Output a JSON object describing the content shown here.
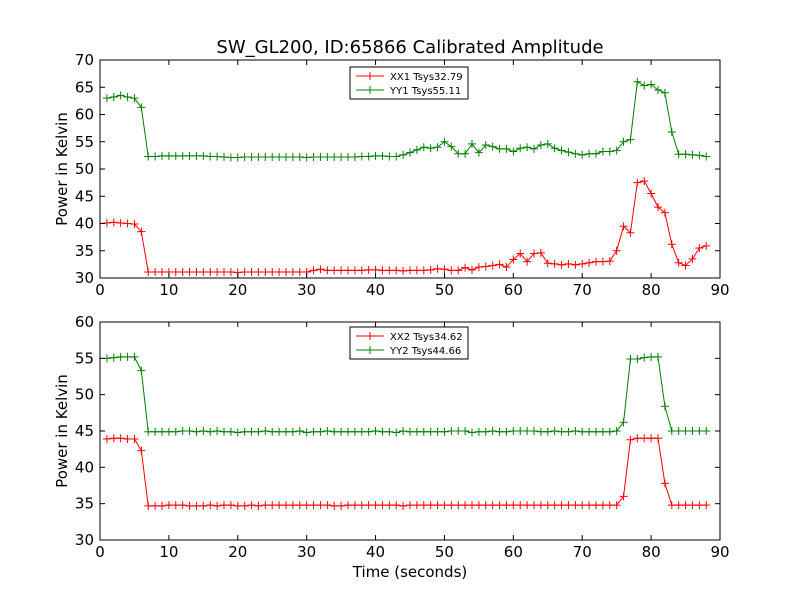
{
  "figure": {
    "title": "SW_GL200, ID:65866 Calibrated Amplitude"
  },
  "chart_data": [
    {
      "type": "line",
      "title": "SW_GL200, ID:65866 Calibrated Amplitude",
      "xlabel": "",
      "ylabel": "Power in Kelvin",
      "xlim": [
        0,
        90
      ],
      "ylim": [
        30,
        70
      ],
      "xticks": [
        0,
        10,
        20,
        30,
        40,
        50,
        60,
        70,
        80,
        90
      ],
      "yticks": [
        30,
        35,
        40,
        45,
        50,
        55,
        60,
        65,
        70
      ],
      "grid": false,
      "legend_position": "top-center",
      "marker": "plus",
      "x": [
        1,
        2,
        3,
        4,
        5,
        6,
        7,
        8,
        9,
        10,
        11,
        12,
        13,
        14,
        15,
        16,
        17,
        18,
        19,
        20,
        21,
        22,
        23,
        24,
        25,
        26,
        27,
        28,
        29,
        30,
        31,
        32,
        33,
        34,
        35,
        36,
        37,
        38,
        39,
        40,
        41,
        42,
        43,
        44,
        45,
        46,
        47,
        48,
        49,
        50,
        51,
        52,
        53,
        54,
        55,
        56,
        57,
        58,
        59,
        60,
        61,
        62,
        63,
        64,
        65,
        66,
        67,
        68,
        69,
        70,
        71,
        72,
        73,
        74,
        75,
        76,
        77,
        78,
        79,
        80,
        81,
        82,
        83,
        84,
        85,
        86,
        87,
        88
      ],
      "series": [
        {
          "name": "XX1 Tsys32.79",
          "color": "#ff0000",
          "values": [
            40.1,
            40.2,
            40.1,
            40.0,
            39.9,
            38.5,
            31.1,
            31.1,
            31.1,
            31.1,
            31.1,
            31.1,
            31.1,
            31.1,
            31.1,
            31.1,
            31.1,
            31.1,
            31.1,
            31.0,
            31.1,
            31.1,
            31.1,
            31.1,
            31.1,
            31.1,
            31.1,
            31.1,
            31.1,
            31.1,
            31.4,
            31.6,
            31.4,
            31.4,
            31.4,
            31.4,
            31.4,
            31.4,
            31.5,
            31.5,
            31.4,
            31.4,
            31.4,
            31.3,
            31.4,
            31.4,
            31.4,
            31.5,
            31.7,
            31.6,
            31.4,
            31.4,
            31.9,
            31.5,
            32.0,
            32.1,
            32.3,
            32.5,
            32.0,
            33.4,
            34.5,
            33.0,
            34.5,
            34.6,
            32.7,
            32.6,
            32.4,
            32.6,
            32.4,
            32.6,
            32.8,
            33.0,
            33.0,
            33.1,
            35.0,
            39.5,
            38.3,
            47.5,
            47.8,
            45.5,
            43.0,
            42.0,
            36.2,
            32.8,
            32.3,
            33.5,
            35.5,
            35.9
          ]
        },
        {
          "name": "YY1 Tsys55.11",
          "color": "#008000",
          "values": [
            63.0,
            63.2,
            63.5,
            63.2,
            63.0,
            61.3,
            52.3,
            52.3,
            52.4,
            52.4,
            52.4,
            52.4,
            52.4,
            52.4,
            52.4,
            52.3,
            52.3,
            52.2,
            52.1,
            52.1,
            52.2,
            52.2,
            52.2,
            52.2,
            52.2,
            52.2,
            52.2,
            52.2,
            52.2,
            52.1,
            52.2,
            52.2,
            52.2,
            52.2,
            52.2,
            52.2,
            52.2,
            52.3,
            52.3,
            52.4,
            52.4,
            52.3,
            52.3,
            52.6,
            53.0,
            53.5,
            54.0,
            53.8,
            54.0,
            55.0,
            54.1,
            52.8,
            52.8,
            54.6,
            53.0,
            54.4,
            54.1,
            53.7,
            53.7,
            53.2,
            53.8,
            54.0,
            53.7,
            54.4,
            54.6,
            53.8,
            53.4,
            53.1,
            52.8,
            52.6,
            52.8,
            52.8,
            53.2,
            53.2,
            53.4,
            55.0,
            55.4,
            66.0,
            65.3,
            65.5,
            64.5,
            64.0,
            56.8,
            52.7,
            52.7,
            52.6,
            52.5,
            52.3
          ]
        }
      ]
    },
    {
      "type": "line",
      "title": "",
      "xlabel": "Time (seconds)",
      "ylabel": "Power in Kelvin",
      "xlim": [
        0,
        90
      ],
      "ylim": [
        30,
        60
      ],
      "xticks": [
        0,
        10,
        20,
        30,
        40,
        50,
        60,
        70,
        80,
        90
      ],
      "yticks": [
        30,
        35,
        40,
        45,
        50,
        55,
        60
      ],
      "grid": false,
      "legend_position": "top-center",
      "marker": "plus",
      "x": [
        1,
        2,
        3,
        4,
        5,
        6,
        7,
        8,
        9,
        10,
        11,
        12,
        13,
        14,
        15,
        16,
        17,
        18,
        19,
        20,
        21,
        22,
        23,
        24,
        25,
        26,
        27,
        28,
        29,
        30,
        31,
        32,
        33,
        34,
        35,
        36,
        37,
        38,
        39,
        40,
        41,
        42,
        43,
        44,
        45,
        46,
        47,
        48,
        49,
        50,
        51,
        52,
        53,
        54,
        55,
        56,
        57,
        58,
        59,
        60,
        61,
        62,
        63,
        64,
        65,
        66,
        67,
        68,
        69,
        70,
        71,
        72,
        73,
        74,
        75,
        76,
        77,
        78,
        79,
        80,
        81,
        82,
        83,
        84,
        85,
        86,
        87,
        88
      ],
      "series": [
        {
          "name": "XX2 Tsys34.62",
          "color": "#ff0000",
          "values": [
            43.9,
            44.0,
            44.0,
            43.9,
            43.9,
            42.3,
            34.7,
            34.7,
            34.7,
            34.8,
            34.8,
            34.8,
            34.7,
            34.7,
            34.7,
            34.8,
            34.7,
            34.8,
            34.8,
            34.7,
            34.7,
            34.8,
            34.7,
            34.8,
            34.8,
            34.8,
            34.8,
            34.8,
            34.8,
            34.8,
            34.8,
            34.8,
            34.8,
            34.7,
            34.7,
            34.8,
            34.8,
            34.8,
            34.8,
            34.8,
            34.8,
            34.8,
            34.8,
            34.7,
            34.8,
            34.8,
            34.8,
            34.8,
            34.8,
            34.8,
            34.8,
            34.8,
            34.8,
            34.8,
            34.8,
            34.8,
            34.8,
            34.8,
            34.8,
            34.8,
            34.8,
            34.8,
            34.8,
            34.8,
            34.8,
            34.8,
            34.8,
            34.8,
            34.8,
            34.8,
            34.8,
            34.8,
            34.8,
            34.8,
            34.8,
            36.0,
            43.8,
            44.0,
            44.0,
            44.0,
            44.0,
            37.8,
            34.8,
            34.8,
            34.8,
            34.8,
            34.8,
            34.8
          ]
        },
        {
          "name": "YY2 Tsys44.66",
          "color": "#008000",
          "values": [
            55.0,
            55.1,
            55.2,
            55.2,
            55.2,
            53.3,
            44.9,
            44.9,
            44.9,
            44.9,
            44.9,
            45.0,
            45.0,
            44.9,
            45.0,
            44.9,
            45.0,
            44.9,
            44.9,
            44.8,
            44.9,
            44.9,
            44.9,
            45.0,
            44.9,
            44.9,
            44.9,
            44.9,
            45.0,
            44.8,
            44.9,
            44.9,
            45.0,
            44.9,
            44.9,
            44.9,
            44.9,
            44.9,
            44.9,
            45.0,
            44.9,
            44.9,
            44.8,
            45.0,
            44.9,
            44.9,
            44.9,
            44.9,
            44.9,
            44.9,
            45.0,
            45.0,
            45.0,
            44.8,
            44.9,
            44.9,
            45.0,
            44.9,
            44.9,
            45.0,
            45.0,
            45.0,
            45.0,
            44.9,
            44.9,
            45.0,
            44.9,
            44.9,
            45.0,
            44.9,
            44.9,
            44.9,
            44.9,
            44.9,
            45.0,
            46.2,
            54.9,
            54.9,
            55.1,
            55.2,
            55.2,
            48.4,
            45.0,
            45.0,
            45.0,
            45.0,
            45.0,
            45.0
          ]
        }
      ]
    }
  ]
}
